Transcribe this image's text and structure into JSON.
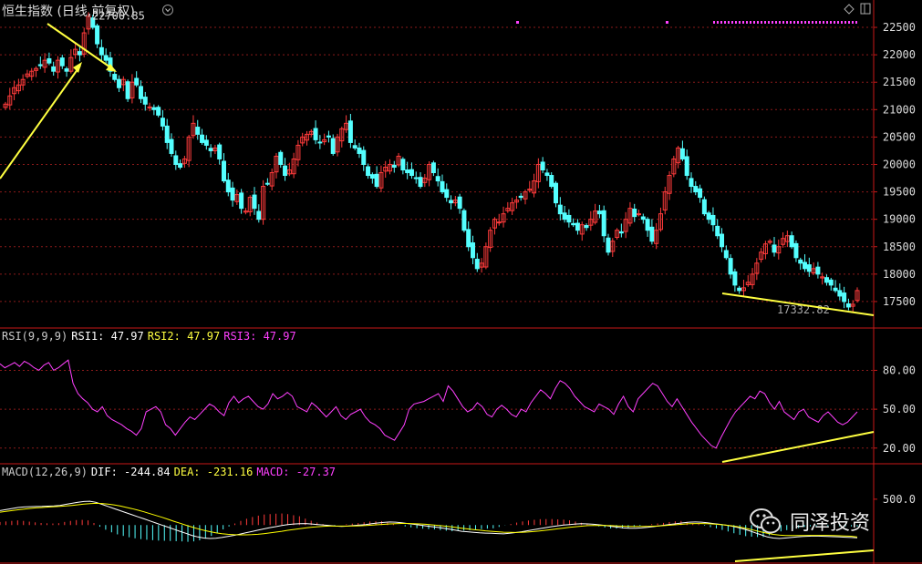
{
  "title": "恒生指数 (日线,前复权)",
  "watermark": "同泽投资",
  "colors": {
    "up": "#ff3b3b",
    "down": "#54ffff",
    "grid": "#8b1a1a",
    "rsi": "#ff40ff",
    "dif": "#ffffff",
    "dea": "#ffff00",
    "trend": "#ffff40",
    "axis": "#c81818"
  },
  "price_panel": {
    "high_label": "22700.85",
    "low_label": "17332.82",
    "yticks": [
      17500,
      18000,
      18500,
      19000,
      19500,
      20000,
      20500,
      21000,
      21500,
      22000,
      22500
    ]
  },
  "rsi_panel": {
    "label": "RSI(9,9,9)",
    "rsi1": "RSI1: 47.97",
    "rsi2": "RSI2: 47.97",
    "rsi3": "RSI3: 47.97",
    "yticks": [
      "80.00",
      "50.00",
      "20.00"
    ]
  },
  "macd_panel": {
    "label": "MACD(12,26,9)",
    "dif": "DIF: -244.84",
    "dea": "DEA: -231.16",
    "macd": "MACD: -27.37",
    "ytick": "500.0"
  },
  "chart_data": [
    {
      "type": "candlestick",
      "title": "恒生指数 (日线,前复权)",
      "ylim": [
        17150,
        22700
      ],
      "close": [
        21100,
        21250,
        21400,
        21450,
        21550,
        21650,
        21700,
        21750,
        21800,
        21900,
        21850,
        21700,
        21900,
        21800,
        21700,
        21950,
        22100,
        22000,
        22400,
        22700,
        22500,
        22200,
        22000,
        21900,
        21700,
        21550,
        21400,
        21550,
        21200,
        21500,
        21450,
        21200,
        21100,
        21050,
        21000,
        20900,
        20700,
        20400,
        20200,
        20000,
        19950,
        20100,
        20500,
        20750,
        20550,
        20400,
        20350,
        20250,
        20300,
        20100,
        19700,
        19500,
        19350,
        19450,
        19200,
        19150,
        19400,
        19200,
        19000,
        19600,
        19650,
        19850,
        20150,
        20000,
        19800,
        19900,
        20100,
        20350,
        20500,
        20550,
        20600,
        20450,
        20400,
        20450,
        20500,
        20200,
        20500,
        20650,
        20750,
        20400,
        20300,
        20200,
        20000,
        19800,
        19750,
        19600,
        19850,
        19950,
        20000,
        19950,
        20150,
        19900,
        19850,
        19800,
        19750,
        19600,
        19750,
        20000,
        19850,
        19700,
        19500,
        19400,
        19300,
        19350,
        19200,
        18800,
        18500,
        18300,
        18100,
        18200,
        18500,
        18800,
        19000,
        18950,
        19100,
        19200,
        19300,
        19350,
        19400,
        19500,
        19550,
        19700,
        20000,
        19900,
        19800,
        19600,
        19300,
        19100,
        19000,
        18950,
        18900,
        18800,
        18900,
        18850,
        19000,
        19150,
        19100,
        18700,
        18400,
        18600,
        18800,
        18750,
        19000,
        19200,
        19050,
        19100,
        19000,
        18800,
        18600,
        18800,
        19100,
        19500,
        19800,
        20100,
        20300,
        20100,
        19800,
        19600,
        19500,
        19400,
        19100,
        19000,
        18900,
        18700,
        18500,
        18300,
        18000,
        17800,
        17700,
        17750,
        17850,
        18000,
        18200,
        18400,
        18550,
        18600,
        18400,
        18500,
        18650,
        18700,
        18500,
        18300,
        18200,
        18100,
        18050,
        18100,
        18000,
        17950,
        17850,
        17800,
        17700,
        17600,
        17500,
        17400,
        17450,
        17700
      ]
    },
    {
      "type": "line",
      "title": "RSI(9,9,9)",
      "ylim": [
        10,
        100
      ],
      "series": [
        {
          "name": "RSI1",
          "values": [
            85,
            82,
            84,
            86,
            83,
            87,
            85,
            82,
            80,
            84,
            86,
            80,
            82,
            85,
            88,
            70,
            62,
            58,
            55,
            50,
            48,
            52,
            45,
            42,
            40,
            38,
            35,
            33,
            30,
            35,
            48,
            50,
            52,
            48,
            38,
            35,
            30,
            35,
            40,
            44,
            42,
            46,
            50,
            54,
            52,
            48,
            45,
            55,
            60,
            55,
            58,
            60,
            56,
            52,
            50,
            54,
            62,
            58,
            60,
            63,
            60,
            52,
            50,
            48,
            55,
            52,
            48,
            44,
            48,
            52,
            45,
            42,
            46,
            48,
            50,
            44,
            40,
            38,
            35,
            30,
            28,
            26,
            32,
            38,
            50,
            54,
            55,
            56,
            58,
            60,
            62,
            56,
            68,
            64,
            58,
            52,
            48,
            50,
            55,
            52,
            46,
            44,
            50,
            53,
            50,
            46,
            44,
            50,
            48,
            55,
            60,
            65,
            62,
            58,
            66,
            72,
            70,
            66,
            60,
            56,
            52,
            50,
            48,
            54,
            52,
            50,
            46,
            54,
            60,
            52,
            48,
            58,
            62,
            66,
            70,
            68,
            62,
            56,
            52,
            58,
            52,
            46,
            40,
            35,
            30,
            26,
            22,
            20,
            28,
            35,
            42,
            48,
            52,
            56,
            60,
            58,
            64,
            62,
            55,
            50,
            56,
            48,
            45,
            42,
            48,
            50,
            44,
            42,
            40,
            45,
            48,
            44,
            40,
            38,
            40,
            44,
            48
          ]
        }
      ]
    },
    {
      "type": "bar+line",
      "title": "MACD(12,26,9)",
      "ylim": [
        -700,
        850
      ],
      "series": [
        {
          "name": "DIF",
          "values": [
            280,
            300,
            320,
            340,
            350,
            355,
            358,
            360,
            365,
            370,
            380,
            400,
            420,
            440,
            455,
            460,
            440,
            400,
            360,
            320,
            280,
            240,
            200,
            160,
            120,
            80,
            40,
            0,
            -40,
            -80,
            -120,
            -160,
            -200,
            -230,
            -250,
            -260,
            -255,
            -240,
            -220,
            -200,
            -175,
            -150,
            -125,
            -100,
            -75,
            -50,
            -30,
            -10,
            10,
            20,
            25,
            30,
            20,
            10,
            0,
            -10,
            -20,
            -25,
            -20,
            -10,
            0,
            10,
            25,
            40,
            50,
            60,
            55,
            45,
            30,
            15,
            0,
            -15,
            -30,
            -45,
            -60,
            -80,
            -100,
            -120,
            -130,
            -140,
            -150,
            -155,
            -160,
            -165,
            -170,
            -160,
            -145,
            -130,
            -110,
            -90,
            -70,
            -50,
            -30,
            -15,
            0,
            10,
            20,
            25,
            22,
            15,
            5,
            -10,
            -25,
            -40,
            -55,
            -60,
            -60,
            -55,
            -45,
            -30,
            -15,
            0,
            15,
            30,
            45,
            55,
            60,
            55,
            45,
            30,
            15,
            0,
            -20,
            -45,
            -75,
            -110,
            -150,
            -190,
            -230,
            -250,
            -260,
            -250,
            -240,
            -230,
            -220,
            -215,
            -210,
            -215,
            -220,
            -225,
            -230,
            -235,
            -240,
            -245
          ]
        },
        {
          "name": "DEA",
          "values": [
            250,
            265,
            280,
            295,
            310,
            322,
            332,
            340,
            348,
            355,
            362,
            370,
            380,
            392,
            405,
            415,
            420,
            416,
            405,
            390,
            370,
            345,
            318,
            288,
            256,
            222,
            186,
            150,
            112,
            74,
            36,
            -2,
            -38,
            -72,
            -102,
            -128,
            -150,
            -166,
            -178,
            -186,
            -190,
            -190,
            -186,
            -178,
            -166,
            -152,
            -136,
            -120,
            -102,
            -86,
            -70,
            -55,
            -42,
            -32,
            -24,
            -20,
            -20,
            -20,
            -20,
            -18,
            -14,
            -9,
            -2,
            6,
            14,
            22,
            28,
            31,
            31,
            28,
            22,
            15,
            5,
            -6,
            -18,
            -31,
            -45,
            -60,
            -74,
            -87,
            -100,
            -111,
            -121,
            -130,
            -138,
            -142,
            -143,
            -140,
            -134,
            -125,
            -114,
            -101,
            -87,
            -73,
            -58,
            -45,
            -32,
            -21,
            -12,
            -7,
            -6,
            -8,
            -12,
            -17,
            -22,
            -26,
            -28,
            -28,
            -26,
            -22,
            -16,
            -9,
            0,
            10,
            19,
            26,
            30,
            30,
            27,
            21,
            12,
            1,
            -13,
            -31,
            -53,
            -78,
            -106,
            -134,
            -160,
            -180,
            -194,
            -201,
            -204,
            -203,
            -201,
            -200,
            -199,
            -199,
            -200,
            -203,
            -206,
            -210,
            -215,
            -231
          ]
        },
        {
          "name": "MACD",
          "values": [
            60,
            70,
            80,
            90,
            80,
            66,
            52,
            40,
            34,
            30,
            36,
            60,
            80,
            96,
            100,
            90,
            40,
            -32,
            -90,
            -140,
            -180,
            -210,
            -236,
            -256,
            -272,
            -284,
            -292,
            -300,
            -304,
            -308,
            -312,
            -316,
            -324,
            -316,
            -296,
            -264,
            -210,
            -148,
            -84,
            -28,
            30,
            80,
            122,
            156,
            182,
            204,
            212,
            220,
            224,
            212,
            190,
            170,
            124,
            84,
            48,
            20,
            0,
            -10,
            0,
            16,
            28,
            38,
            54,
            68,
            72,
            76,
            54,
            28,
            -2,
            -26,
            -44,
            -60,
            -70,
            -78,
            -84,
            -98,
            -110,
            -120,
            -112,
            -106,
            -100,
            -88,
            -78,
            -70,
            -64,
            -36,
            -4,
            20,
            48,
            70,
            88,
            102,
            114,
            116,
            116,
            110,
            104,
            92,
            68,
            44,
            22,
            -6,
            -26,
            -46,
            -66,
            -68,
            -64,
            -54,
            -38,
            -16,
            2,
            18,
            30,
            42,
            58,
            72,
            78,
            62,
            36,
            18,
            -12,
            -40,
            -64,
            -94,
            -124,
            -158,
            -188,
            -214,
            -224,
            -232,
            -232,
            -198,
            -144,
            -122,
            -98,
            -74,
            -58,
            -36,
            -24,
            -20,
            -16,
            -18,
            -20,
            -20,
            -22,
            -26,
            -28
          ]
        }
      ]
    }
  ]
}
